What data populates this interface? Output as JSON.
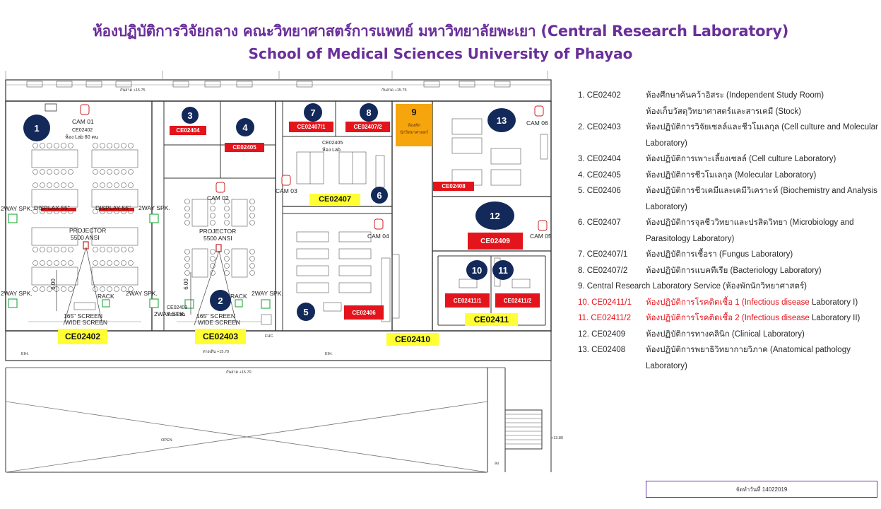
{
  "title_th": "ห้องปฏิบัติการวิจัยกลาง คณะวิทยาศาสตร์การแพทย์ มหาวิทยาลัยพะเยา (Central Research Laboratory)",
  "title_en": "School of Medical Sciences University of Phayao",
  "circles": [
    "1",
    "2",
    "3",
    "4",
    "5",
    "6",
    "7",
    "8",
    "9",
    "10",
    "11",
    "12",
    "13"
  ],
  "red_labels": {
    "r2404": "CE02404",
    "r2405": "CE02405",
    "r2407_1": "CE02407/1",
    "r2407_2": "CE02407/2",
    "r2408": "CE02408",
    "r2409": "CE02409",
    "r2406": "CE02406",
    "r2411_1": "CE02411/1",
    "r2411_2": "CE02411/2"
  },
  "yellow_labels": {
    "y2402": "CE02402",
    "y2403": "CE02403",
    "y2407": "CE02407",
    "y2410": "CE02410",
    "y2411": "CE02411"
  },
  "room9_text": [
    "ห้องพัก",
    "นักวิทยาศาสตร์"
  ],
  "plan_text": {
    "cam01": "CAM 01",
    "cam02": "CAM 02",
    "cam03": "CAM 03",
    "cam04": "CAM 04",
    "cam05": "CAM 05",
    "cam06": "CAM 06",
    "ce02402_lab": "CE02402",
    "room_lab80": "ห้อง Lab 80 คน",
    "ce02403_lab": "CE02403",
    "room_lab40": "ห้อง Lab",
    "ce02405_lab": "CE02405",
    "room_lab": "ห้อง Lab",
    "display1": "DISPLAX 55\"",
    "display2": "DISPLAY 55\"",
    "projector1": "PROJECTOR",
    "projector1_ansi": "5500 ANSI",
    "projector2": "PROJECTOR",
    "projector2_ansi": "5500 ANSI",
    "spk1": "2WAY SPK.",
    "spk2": "2WAY SPK.",
    "spk3": "2WAY SPK.",
    "spk4": "2WAY SPK.",
    "spk5": "2WAY SPK.",
    "spk6": "2WAY SPK.",
    "rack1": "RACK",
    "rack2": "RACK",
    "screen1a": "165\" SCREEN",
    "screen1b": "WIDE SCREEN",
    "screen2a": "165\" SCREEN",
    "screen2b": "WIDE SCREEN",
    "dim1": "6.00",
    "dim2": "6.00",
    "level1": "กันสาด +15.75",
    "level2": "กันสาด +15.75",
    "level3": "ทางเดิน +15.70",
    "level4": "กันสาด +15.70",
    "level5": "+13.80",
    "eh1": "EIH.",
    "eh2": "EIH.",
    "fhc": "FHC.",
    "open": "OPEN",
    "down": "ลง"
  },
  "legend": [
    {
      "code": "1. CE02402",
      "desc": "ห้องศึกษาค้นคว้าอิสระ (Independent Study Room)",
      "red": false
    },
    {
      "code": "",
      "desc": "ห้องเก็บวัสดุวิทยาศาสตร์และสารเคมี (Stock)",
      "red": false
    },
    {
      "code": "2. CE02403",
      "desc": "ห้องปฏิบัติการวิจัยเซลล์และชีวโมเลกุล (Cell culture and Molecular Laboratory)",
      "red": false
    },
    {
      "code": "3. CE02404",
      "desc": "ห้องปฏิบัติการเพาะเลี้ยงเซลล์ (Cell culture Laboratory)",
      "red": false
    },
    {
      "code": "4. CE02405",
      "desc": "ห้องปฏิบัติการชีวโมเลกุล (Molecular Laboratory)",
      "red": false
    },
    {
      "code": "5. CE02406",
      "desc": "ห้องปฏิบัติการชีวเคมีและเคมีวิเคราะห์ (Biochemistry and Analysis Laboratory)",
      "red": false
    },
    {
      "code": "6. CE02407",
      "desc": "ห้องปฏิบัติการจุลชีววิทยาและปรสิตวิทยา (Microbiology and Parasitology Laboratory)",
      "red": false
    },
    {
      "code": "7. CE02407/1",
      "desc": "ห้องปฏิบัติการเชื้อรา (Fungus Laboratory)",
      "red": false
    },
    {
      "code": "8. CE02407/2",
      "desc": "ห้องปฏิบัติการแบคทีเรีย (Bacteriology Laboratory)",
      "red": false
    },
    {
      "code": "9. Central Research Laboratory Service (ห้องพักนักวิทยาศาสตร์)",
      "desc": "",
      "red": false,
      "full": true
    },
    {
      "code": "10. CE02411/1",
      "desc": "ห้องปฏิบัติการโรคติดเชื้อ 1 (Infectious disease",
      "desc_tail": " Laboratory I)",
      "red": true
    },
    {
      "code": "11. CE02411/2",
      "desc": "ห้องปฏิบัติการโรคติดเชื้อ 2 (Infectious disease",
      "desc_tail": " Laboratory II)",
      "red": true
    },
    {
      "code": "12. CE02409",
      "desc": "ห้องปฏิบัติการทางคลินิก (Clinical Laboratory)",
      "red": false
    },
    {
      "code": "13. CE02408",
      "desc": "ห้องปฏิบัติการพยาธิวิทยากายวิภาค (Anatomical pathology Laboratory)",
      "red": false
    }
  ],
  "date": "จัดทำวันที่ 14022019",
  "colors": {
    "title": "#6a2f9a",
    "circle": "#13295a",
    "red_label": "#e3141b",
    "yellow_label": "#ffff33",
    "orange": "#f6a50d",
    "speaker": "#2fb24a",
    "camera": "#e3141b"
  }
}
